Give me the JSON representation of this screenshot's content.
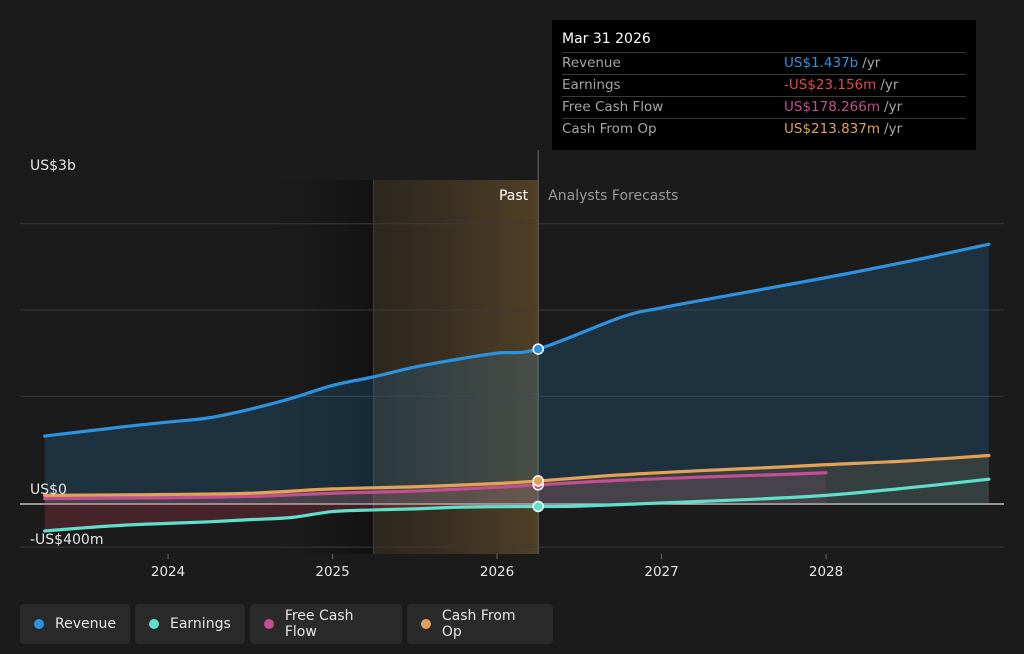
{
  "chart_data": {
    "type": "area",
    "y_axis_labels": [
      "US$3b",
      "US$0",
      "-US$400m"
    ],
    "ylim": [
      -400,
      2600
    ],
    "unit": "US$ millions",
    "x_tick_labels": [
      "2024",
      "2025",
      "2026",
      "2027",
      "2028"
    ],
    "x_ticks": [
      2024,
      2025,
      2026,
      2027,
      2028
    ],
    "xlim": [
      2023.1,
      2028.99
    ],
    "past_label": "Past",
    "forecast_label": "Analysts Forecasts",
    "past_region": [
      2025.25,
      2026.25
    ],
    "divider_x": 2026.25,
    "series": [
      {
        "name": "Revenue",
        "color": "#2d93e0",
        "x": [
          2023.25,
          2023.75,
          2024.0,
          2024.25,
          2024.5,
          2024.75,
          2025.0,
          2025.25,
          2025.5,
          2025.75,
          2026.0,
          2026.25,
          2026.75,
          2027.0,
          2027.5,
          2028.0,
          2028.5,
          2028.99
        ],
        "values": [
          630,
          720,
          760,
          800,
          880,
          980,
          1100,
          1180,
          1270,
          1340,
          1400,
          1437,
          1730,
          1820,
          1960,
          2100,
          2250,
          2410
        ],
        "markers": [
          {
            "x": 2026.25,
            "y": 1437
          }
        ]
      },
      {
        "name": "Earnings",
        "color": "#5de0cc",
        "x": [
          2023.25,
          2023.5,
          2023.75,
          2024.0,
          2024.25,
          2024.5,
          2024.75,
          2025.0,
          2025.25,
          2025.5,
          2025.75,
          2026.0,
          2026.25,
          2026.5,
          2027.0,
          2027.5,
          2028.0,
          2028.5,
          2028.99
        ],
        "values": [
          -250,
          -220,
          -195,
          -180,
          -165,
          -145,
          -125,
          -70,
          -55,
          -45,
          -30,
          -25,
          -23,
          -20,
          10,
          40,
          80,
          150,
          230
        ],
        "markers": [
          {
            "x": 2026.25,
            "y": -23
          }
        ]
      },
      {
        "name": "Free Cash Flow",
        "color": "#c34f93",
        "x": [
          2023.25,
          2023.75,
          2024.0,
          2024.5,
          2025.0,
          2025.5,
          2026.0,
          2026.25,
          2026.75,
          2027.25,
          2027.75,
          2028.0
        ],
        "values": [
          50,
          55,
          58,
          70,
          100,
          120,
          155,
          178,
          220,
          250,
          275,
          290
        ],
        "markers": [
          {
            "x": 2026.25,
            "y": 178
          }
        ]
      },
      {
        "name": "Cash From Op",
        "color": "#e3a356",
        "x": [
          2023.25,
          2023.75,
          2024.0,
          2024.5,
          2025.0,
          2025.5,
          2026.0,
          2026.25,
          2026.75,
          2027.25,
          2027.75,
          2028.0,
          2028.5,
          2028.99
        ],
        "values": [
          80,
          85,
          88,
          100,
          140,
          160,
          190,
          214,
          270,
          310,
          345,
          365,
          400,
          450
        ],
        "markers": [
          {
            "x": 2026.25,
            "y": 214
          }
        ]
      }
    ]
  },
  "tooltip": {
    "date": "Mar 31 2026",
    "rows": [
      {
        "label": "Revenue",
        "value": "US$1.437b",
        "unit": "/yr",
        "color": "#2d93e0"
      },
      {
        "label": "Earnings",
        "value": "-US$23.156m",
        "unit": "/yr",
        "color": "#e8474e"
      },
      {
        "label": "Free Cash Flow",
        "value": "US$178.266m",
        "unit": "/yr",
        "color": "#c34f93"
      },
      {
        "label": "Cash From Op",
        "value": "US$213.837m",
        "unit": "/yr",
        "color": "#e3a356"
      }
    ]
  },
  "legend": [
    {
      "label": "Revenue",
      "color": "#2d93e0"
    },
    {
      "label": "Earnings",
      "color": "#5de0cc"
    },
    {
      "label": "Free Cash Flow",
      "color": "#c34f93"
    },
    {
      "label": "Cash From Op",
      "color": "#e3a356"
    }
  ]
}
